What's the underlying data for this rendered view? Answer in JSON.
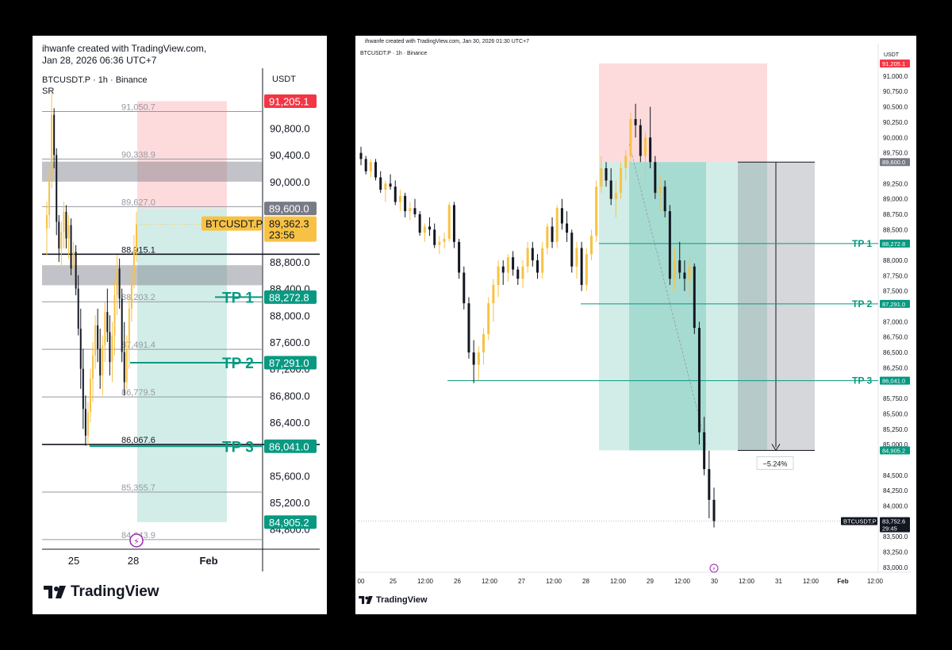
{
  "chart_data": [
    {
      "type": "candlestick",
      "credit": [
        "ihwanfe created with TradingView.com,",
        "Jan 28, 2026 06:36 UTC+7"
      ],
      "symbol_line": "BTCUSDT.P · 1h · Binance",
      "indicator": "SR",
      "currency": "USDT",
      "brand": "TradingView",
      "x_ticks": [
        "25",
        "28",
        "Feb"
      ],
      "y_ticks": [
        "90,800.0",
        "90,400.0",
        "90,000.0",
        "88,800.0",
        "88,400.0",
        "88,000.0",
        "87,600.0",
        "87,200.0",
        "86,800.0",
        "86,400.0",
        "85,600.0",
        "85,200.0",
        "84,800.0"
      ],
      "y_range": [
        84500,
        91650
      ],
      "sr_levels": [
        {
          "label": "91,050.7",
          "value": 91050.7
        },
        {
          "label": "90,338.9",
          "value": 90338.9
        },
        {
          "label": "89,627.0",
          "value": 89627.0
        },
        {
          "label": "88,915.1",
          "value": 88915.1
        },
        {
          "label": "88,203.2",
          "value": 88203.2
        },
        {
          "label": "87,491.4",
          "value": 87491.4
        },
        {
          "label": "86,779.5",
          "value": 86779.5
        },
        {
          "label": "86,067.6",
          "value": 86067.6
        },
        {
          "label": "85,355.7",
          "value": 85355.7
        },
        {
          "label": "84,643.9",
          "value": 84643.9
        }
      ],
      "zones": [
        [
          90000,
          90300
        ],
        [
          88450,
          88750
        ]
      ],
      "position": {
        "stop": 91205.1,
        "entry": 89600.0,
        "target": 84905.2
      },
      "targets": [
        {
          "name": "TP 1",
          "value": 88272.8,
          "label": "88,272.8"
        },
        {
          "name": "TP 2",
          "value": 87291.0,
          "label": "87,291.0"
        },
        {
          "name": "TP 3",
          "value": 86041.0,
          "label": "86,041.0"
        }
      ],
      "price_tags": {
        "stop": "91,205.1",
        "entry": "89,600.0",
        "target": "84,905.2"
      },
      "last_price": {
        "name": "BTCUSDT.P",
        "value": 89362.3,
        "label": "89,362.3",
        "countdown": "23:56"
      },
      "ohlc": [
        [
          89300,
          89700,
          88900,
          89500
        ],
        [
          89500,
          90200,
          89300,
          90050
        ],
        [
          90050,
          91350,
          89900,
          91000
        ],
        [
          91000,
          91100,
          90200,
          90400
        ],
        [
          90400,
          90500,
          89200,
          89400
        ],
        [
          89400,
          89500,
          88800,
          89000
        ],
        [
          89000,
          89400,
          88700,
          89250
        ],
        [
          89250,
          89700,
          89000,
          89550
        ],
        [
          89550,
          89650,
          89000,
          89150
        ],
        [
          89150,
          89500,
          88850,
          89350
        ],
        [
          89350,
          89450,
          88600,
          88700
        ],
        [
          88700,
          89100,
          88500,
          88950
        ],
        [
          88950,
          89050,
          88300,
          88400
        ],
        [
          88400,
          88600,
          87700,
          87800
        ],
        [
          87800,
          88100,
          86900,
          87200
        ],
        [
          87200,
          87500,
          86300,
          86600
        ],
        [
          86600,
          86800,
          86050,
          86200
        ],
        [
          86200,
          86700,
          86050,
          86550
        ],
        [
          86550,
          87200,
          86400,
          87050
        ],
        [
          87050,
          87600,
          86700,
          87400
        ],
        [
          87400,
          88000,
          87200,
          87850
        ],
        [
          87850,
          88100,
          87300,
          87500
        ],
        [
          87500,
          87800,
          86900,
          87100
        ],
        [
          87100,
          87700,
          86800,
          87550
        ],
        [
          87550,
          88200,
          87300,
          88050
        ],
        [
          88050,
          88400,
          87600,
          87750
        ],
        [
          87750,
          88000,
          87100,
          87300
        ],
        [
          87300,
          87900,
          87000,
          87700
        ],
        [
          87700,
          88500,
          87400,
          88300
        ],
        [
          88300,
          88900,
          88000,
          88700
        ],
        [
          88700,
          88850,
          88100,
          88250
        ],
        [
          88250,
          88400,
          87300,
          87450
        ],
        [
          87450,
          87900,
          86800,
          87000
        ],
        [
          87000,
          87700,
          86900,
          87500
        ],
        [
          87500,
          88300,
          87200,
          88100
        ],
        [
          88100,
          88700,
          87900,
          88600
        ],
        [
          88600,
          89200,
          88400,
          89000
        ],
        [
          89000,
          89550,
          88800,
          89362
        ]
      ]
    },
    {
      "type": "candlestick",
      "credit": [
        "ihwanfe created with TradingView.com, Jan 30, 2026 01:30 UTC+7"
      ],
      "symbol_line": "BTCUSDT.P · 1h · Binance",
      "currency": "USDT",
      "brand": "TradingView",
      "x_ticks": [
        "00",
        "25",
        "12:00",
        "26",
        "12:00",
        "27",
        "12:00",
        "28",
        "12:00",
        "29",
        "12:00",
        "30",
        "12:00",
        "31",
        "12:00",
        "Feb",
        "12:00"
      ],
      "y_ticks": [
        "91,000.0",
        "90,750.0",
        "90,500.0",
        "90,250.0",
        "90,000.0",
        "89,750.0",
        "89,250.0",
        "89,000.0",
        "88,750.0",
        "88,500.0",
        "88,000.0",
        "87,750.0",
        "87,500.0",
        "87,000.0",
        "86,750.0",
        "86,500.0",
        "86,250.0",
        "85,750.0",
        "85,500.0",
        "85,250.0",
        "85,000.0",
        "84,500.0",
        "84,250.0",
        "84,000.0",
        "83,500.0",
        "83,250.0",
        "83,000.0"
      ],
      "y_range": [
        82960,
        91425
      ],
      "position": {
        "stop": 91205.1,
        "entry": 89600.0,
        "target": 84905.2
      },
      "targets": [
        {
          "name": "TP 1",
          "value": 88272.8,
          "label": "88,272.8"
        },
        {
          "name": "TP 2",
          "value": 87291.0,
          "label": "87,291.0"
        },
        {
          "name": "TP 3",
          "value": 86041.0,
          "label": "86,041.0"
        }
      ],
      "price_tags": {
        "stop": "91,205.1",
        "entry": "89,600.0",
        "target": "84,905.2"
      },
      "measure_label": "−5.24%",
      "last_price": {
        "name": "BTCUSDT.P",
        "value": 83752.6,
        "label": "83,752.6",
        "countdown": "29:45"
      },
      "ohlc": [
        [
          89750,
          89850,
          89550,
          89650
        ],
        [
          89650,
          89700,
          89400,
          89450
        ],
        [
          89450,
          89650,
          89350,
          89600
        ],
        [
          89600,
          89650,
          89300,
          89350
        ],
        [
          89350,
          89450,
          89100,
          89150
        ],
        [
          89150,
          89300,
          88950,
          89250
        ],
        [
          89250,
          89400,
          89150,
          89200
        ],
        [
          89200,
          89300,
          88900,
          88950
        ],
        [
          88950,
          89150,
          88800,
          89050
        ],
        [
          89050,
          89100,
          88700,
          88800
        ],
        [
          88800,
          88950,
          88650,
          88850
        ],
        [
          88850,
          89000,
          88700,
          88750
        ],
        [
          88750,
          88800,
          88400,
          88450
        ],
        [
          88450,
          88600,
          88300,
          88550
        ],
        [
          88550,
          88700,
          88400,
          88500
        ],
        [
          88500,
          88600,
          88200,
          88250
        ],
        [
          88250,
          88400,
          88100,
          88300
        ],
        [
          88300,
          88450,
          88200,
          88350
        ],
        [
          88350,
          88950,
          88300,
          88900
        ],
        [
          88900,
          88950,
          88200,
          88300
        ],
        [
          88300,
          88350,
          87700,
          87800
        ],
        [
          87800,
          87900,
          87200,
          87300
        ],
        [
          87300,
          87400,
          86400,
          86500
        ],
        [
          86500,
          86700,
          86000,
          86300
        ],
        [
          86300,
          86600,
          86050,
          86500
        ],
        [
          86500,
          86900,
          86300,
          86800
        ],
        [
          86800,
          87400,
          86700,
          87300
        ],
        [
          87300,
          87700,
          87000,
          87600
        ],
        [
          87600,
          88000,
          87400,
          87900
        ],
        [
          87900,
          88000,
          87600,
          87800
        ],
        [
          87800,
          88100,
          87650,
          88050
        ],
        [
          88050,
          88150,
          87750,
          87850
        ],
        [
          87850,
          87900,
          87600,
          87700
        ],
        [
          87700,
          88000,
          87550,
          87900
        ],
        [
          87900,
          88300,
          87800,
          88200
        ],
        [
          88200,
          88300,
          87900,
          88000
        ],
        [
          88000,
          88100,
          87700,
          87800
        ],
        [
          87800,
          88300,
          87700,
          88200
        ],
        [
          88200,
          88600,
          88100,
          88550
        ],
        [
          88550,
          88700,
          88200,
          88300
        ],
        [
          88300,
          88900,
          88200,
          88850
        ],
        [
          88850,
          89000,
          88500,
          88600
        ],
        [
          88600,
          88800,
          88300,
          88450
        ],
        [
          88450,
          88500,
          87800,
          87900
        ],
        [
          87900,
          88300,
          87700,
          88200
        ],
        [
          88200,
          88300,
          87500,
          87600
        ],
        [
          87600,
          88200,
          87500,
          88100
        ],
        [
          88100,
          88500,
          88000,
          88400
        ],
        [
          88400,
          89300,
          88300,
          89200
        ],
        [
          89200,
          89700,
          89100,
          89500
        ],
        [
          89500,
          89600,
          89200,
          89300
        ],
        [
          89300,
          89500,
          88900,
          89000
        ],
        [
          89000,
          89300,
          88700,
          89100
        ],
        [
          89100,
          89600,
          89000,
          89500
        ],
        [
          89500,
          89800,
          89300,
          89700
        ],
        [
          89700,
          90400,
          89600,
          90300
        ],
        [
          90300,
          90550,
          90000,
          90200
        ],
        [
          90200,
          90300,
          89600,
          89700
        ],
        [
          89700,
          90100,
          89300,
          90000
        ],
        [
          90000,
          90500,
          89500,
          89600
        ],
        [
          89600,
          89700,
          89000,
          89100
        ],
        [
          89100,
          89400,
          88800,
          89200
        ],
        [
          89200,
          89300,
          88700,
          88800
        ],
        [
          88800,
          88900,
          87600,
          87700
        ],
        [
          87700,
          88200,
          87500,
          88000
        ],
        [
          88000,
          88300,
          87700,
          87800
        ],
        [
          87800,
          88000,
          87500,
          87700
        ],
        [
          87700,
          88050,
          87400,
          87900
        ],
        [
          87900,
          87950,
          86800,
          86900
        ],
        [
          86900,
          87000,
          85000,
          85200
        ],
        [
          85200,
          85450,
          84500,
          84600
        ],
        [
          84600,
          84900,
          83800,
          84100
        ],
        [
          84100,
          84300,
          83650,
          83752
        ]
      ]
    }
  ]
}
